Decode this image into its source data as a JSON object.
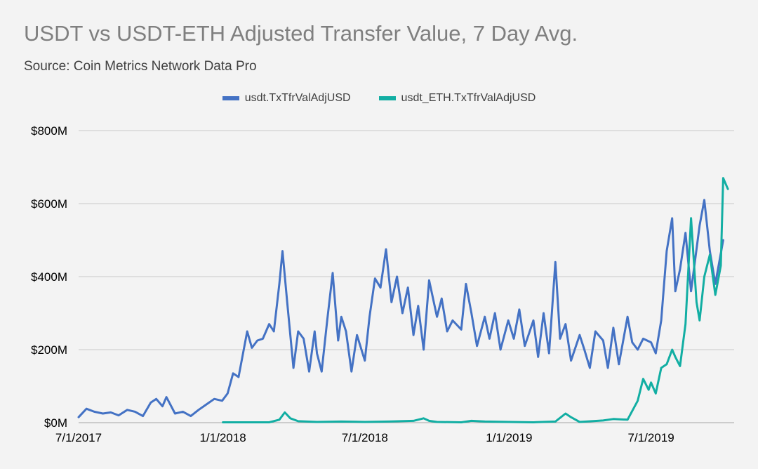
{
  "colors": {
    "background": "#f3f3f3",
    "grid": "#c8c8c8",
    "series_usdt": "#4472c4",
    "series_eth": "#12aea3"
  },
  "chart_data": {
    "type": "line",
    "title": "USDT vs USDT-ETH Adjusted Transfer Value, 7 Day Avg.",
    "subtitle": "Source: Coin Metrics Network Data Pro",
    "legend_position": "top-center",
    "grid": "horizontal",
    "y_unit": "USD millions",
    "ylim": [
      0,
      800
    ],
    "yticks": [
      {
        "value": 0,
        "label": "$0M"
      },
      {
        "value": 200,
        "label": "$200M"
      },
      {
        "value": 400,
        "label": "$400M"
      },
      {
        "value": 600,
        "label": "$600M"
      },
      {
        "value": 800,
        "label": "$800M"
      }
    ],
    "xlim": [
      "2017-07-01",
      "2019-10-15"
    ],
    "xticks": [
      {
        "value": "2017-07-01",
        "label": "7/1/2017"
      },
      {
        "value": "2018-01-01",
        "label": "1/1/2018"
      },
      {
        "value": "2018-07-01",
        "label": "7/1/2018"
      },
      {
        "value": "2019-01-01",
        "label": "1/1/2019"
      },
      {
        "value": "2019-07-01",
        "label": "7/1/2019"
      }
    ],
    "series": [
      {
        "name": "usdt.TxTfrValAdjUSD",
        "color": "#4472c4",
        "points": [
          [
            "2017-07-01",
            15
          ],
          [
            "2017-07-11",
            38
          ],
          [
            "2017-07-21",
            30
          ],
          [
            "2017-08-01",
            25
          ],
          [
            "2017-08-11",
            28
          ],
          [
            "2017-08-21",
            20
          ],
          [
            "2017-09-01",
            35
          ],
          [
            "2017-09-11",
            30
          ],
          [
            "2017-09-21",
            18
          ],
          [
            "2017-10-01",
            55
          ],
          [
            "2017-10-08",
            65
          ],
          [
            "2017-10-16",
            45
          ],
          [
            "2017-10-21",
            70
          ],
          [
            "2017-11-01",
            25
          ],
          [
            "2017-11-11",
            30
          ],
          [
            "2017-11-21",
            18
          ],
          [
            "2017-12-01",
            35
          ],
          [
            "2017-12-11",
            50
          ],
          [
            "2017-12-21",
            65
          ],
          [
            "2017-12-31",
            60
          ],
          [
            "2018-01-07",
            80
          ],
          [
            "2018-01-14",
            135
          ],
          [
            "2018-01-21",
            125
          ],
          [
            "2018-02-01",
            250
          ],
          [
            "2018-02-07",
            205
          ],
          [
            "2018-02-14",
            225
          ],
          [
            "2018-02-21",
            230
          ],
          [
            "2018-03-01",
            270
          ],
          [
            "2018-03-07",
            250
          ],
          [
            "2018-03-14",
            380
          ],
          [
            "2018-03-18",
            470
          ],
          [
            "2018-03-24",
            330
          ],
          [
            "2018-04-01",
            150
          ],
          [
            "2018-04-07",
            250
          ],
          [
            "2018-04-14",
            230
          ],
          [
            "2018-04-21",
            140
          ],
          [
            "2018-04-28",
            250
          ],
          [
            "2018-05-01",
            190
          ],
          [
            "2018-05-07",
            140
          ],
          [
            "2018-05-14",
            280
          ],
          [
            "2018-05-21",
            410
          ],
          [
            "2018-05-28",
            225
          ],
          [
            "2018-06-01",
            290
          ],
          [
            "2018-06-07",
            250
          ],
          [
            "2018-06-14",
            140
          ],
          [
            "2018-06-21",
            240
          ],
          [
            "2018-07-01",
            170
          ],
          [
            "2018-07-07",
            290
          ],
          [
            "2018-07-14",
            395
          ],
          [
            "2018-07-21",
            370
          ],
          [
            "2018-07-28",
            475
          ],
          [
            "2018-08-04",
            330
          ],
          [
            "2018-08-11",
            400
          ],
          [
            "2018-08-18",
            300
          ],
          [
            "2018-08-25",
            370
          ],
          [
            "2018-09-01",
            240
          ],
          [
            "2018-09-07",
            320
          ],
          [
            "2018-09-14",
            200
          ],
          [
            "2018-09-21",
            390
          ],
          [
            "2018-10-01",
            290
          ],
          [
            "2018-10-07",
            340
          ],
          [
            "2018-10-14",
            250
          ],
          [
            "2018-10-21",
            280
          ],
          [
            "2018-11-01",
            255
          ],
          [
            "2018-11-07",
            380
          ],
          [
            "2018-11-14",
            300
          ],
          [
            "2018-11-21",
            210
          ],
          [
            "2018-12-01",
            290
          ],
          [
            "2018-12-07",
            230
          ],
          [
            "2018-12-14",
            300
          ],
          [
            "2018-12-21",
            200
          ],
          [
            "2018-12-31",
            280
          ],
          [
            "2019-01-07",
            230
          ],
          [
            "2019-01-14",
            310
          ],
          [
            "2019-01-21",
            210
          ],
          [
            "2019-02-01",
            280
          ],
          [
            "2019-02-07",
            180
          ],
          [
            "2019-02-14",
            300
          ],
          [
            "2019-02-21",
            190
          ],
          [
            "2019-03-01",
            440
          ],
          [
            "2019-03-07",
            230
          ],
          [
            "2019-03-14",
            270
          ],
          [
            "2019-03-21",
            170
          ],
          [
            "2019-04-01",
            240
          ],
          [
            "2019-04-07",
            200
          ],
          [
            "2019-04-14",
            150
          ],
          [
            "2019-04-21",
            250
          ],
          [
            "2019-05-01",
            225
          ],
          [
            "2019-05-07",
            150
          ],
          [
            "2019-05-14",
            260
          ],
          [
            "2019-05-21",
            160
          ],
          [
            "2019-06-01",
            290
          ],
          [
            "2019-06-07",
            220
          ],
          [
            "2019-06-14",
            200
          ],
          [
            "2019-06-21",
            230
          ],
          [
            "2019-07-01",
            220
          ],
          [
            "2019-07-07",
            190
          ],
          [
            "2019-07-14",
            280
          ],
          [
            "2019-07-21",
            470
          ],
          [
            "2019-07-28",
            560
          ],
          [
            "2019-08-01",
            360
          ],
          [
            "2019-08-07",
            420
          ],
          [
            "2019-08-14",
            520
          ],
          [
            "2019-08-21",
            360
          ],
          [
            "2019-09-01",
            540
          ],
          [
            "2019-09-07",
            610
          ],
          [
            "2019-09-14",
            470
          ],
          [
            "2019-09-21",
            380
          ],
          [
            "2019-10-01",
            500
          ]
        ]
      },
      {
        "name": "usdt_ETH.TxTfrValAdjUSD",
        "color": "#12aea3",
        "points": [
          [
            "2018-01-01",
            1
          ],
          [
            "2018-03-01",
            1
          ],
          [
            "2018-03-14",
            8
          ],
          [
            "2018-03-21",
            28
          ],
          [
            "2018-03-28",
            12
          ],
          [
            "2018-04-07",
            4
          ],
          [
            "2018-05-01",
            2
          ],
          [
            "2018-06-01",
            3
          ],
          [
            "2018-07-01",
            2
          ],
          [
            "2018-08-01",
            3
          ],
          [
            "2018-09-01",
            5
          ],
          [
            "2018-09-14",
            12
          ],
          [
            "2018-09-21",
            5
          ],
          [
            "2018-10-01",
            2
          ],
          [
            "2018-11-01",
            1
          ],
          [
            "2018-11-14",
            5
          ],
          [
            "2018-12-01",
            3
          ],
          [
            "2019-01-01",
            2
          ],
          [
            "2019-02-01",
            1
          ],
          [
            "2019-03-01",
            3
          ],
          [
            "2019-03-14",
            25
          ],
          [
            "2019-03-21",
            15
          ],
          [
            "2019-04-01",
            2
          ],
          [
            "2019-05-01",
            6
          ],
          [
            "2019-05-14",
            10
          ],
          [
            "2019-06-01",
            8
          ],
          [
            "2019-06-14",
            60
          ],
          [
            "2019-06-21",
            120
          ],
          [
            "2019-06-28",
            90
          ],
          [
            "2019-07-01",
            110
          ],
          [
            "2019-07-07",
            80
          ],
          [
            "2019-07-14",
            150
          ],
          [
            "2019-07-21",
            160
          ],
          [
            "2019-07-28",
            200
          ],
          [
            "2019-08-01",
            180
          ],
          [
            "2019-08-07",
            155
          ],
          [
            "2019-08-14",
            270
          ],
          [
            "2019-08-21",
            560
          ],
          [
            "2019-08-28",
            330
          ],
          [
            "2019-09-01",
            280
          ],
          [
            "2019-09-07",
            400
          ],
          [
            "2019-09-14",
            460
          ],
          [
            "2019-09-21",
            350
          ],
          [
            "2019-09-28",
            430
          ],
          [
            "2019-10-01",
            670
          ],
          [
            "2019-10-07",
            640
          ]
        ]
      }
    ]
  }
}
